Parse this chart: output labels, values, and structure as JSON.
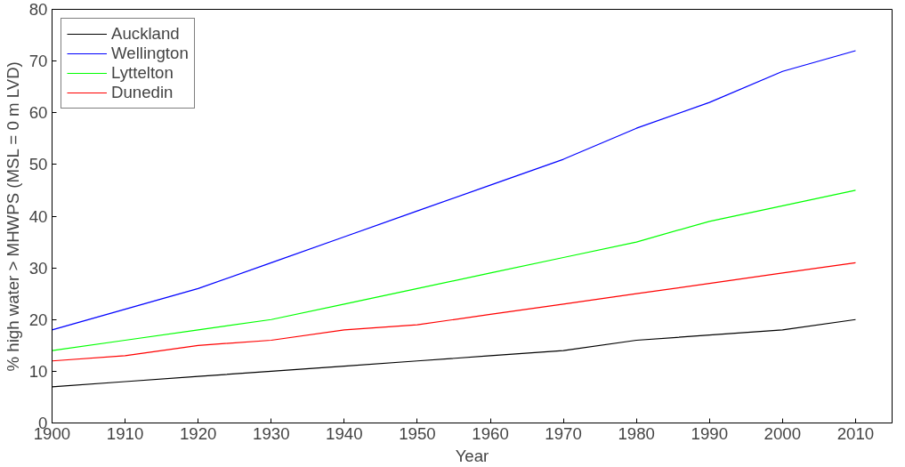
{
  "chart_data": {
    "type": "line",
    "xlabel": "Year",
    "ylabel": "% high water > MHWPS (MSL = 0 m LVD)",
    "x": [
      1900,
      1910,
      1920,
      1930,
      1940,
      1950,
      1960,
      1970,
      1980,
      1990,
      2000,
      2010
    ],
    "series": [
      {
        "name": "Auckland",
        "color": "#000000",
        "values": [
          7,
          8,
          9,
          10,
          11,
          12,
          13,
          14,
          16,
          17,
          18,
          20
        ]
      },
      {
        "name": "Wellington",
        "color": "#0000ff",
        "values": [
          18,
          22,
          26,
          31,
          36,
          41,
          46,
          51,
          57,
          62,
          68,
          72
        ]
      },
      {
        "name": "Lyttelton",
        "color": "#00ff00",
        "values": [
          14,
          16,
          18,
          20,
          23,
          26,
          29,
          32,
          35,
          39,
          42,
          45
        ]
      },
      {
        "name": "Dunedin",
        "color": "#ff0000",
        "values": [
          12,
          13,
          15,
          16,
          18,
          19,
          21,
          23,
          25,
          27,
          29,
          31
        ]
      }
    ],
    "xlim": [
      1900,
      2015
    ],
    "ylim": [
      0,
      80
    ],
    "xticks": [
      1900,
      1910,
      1920,
      1930,
      1940,
      1950,
      1960,
      1970,
      1980,
      1990,
      2000,
      2010
    ],
    "yticks": [
      0,
      10,
      20,
      30,
      40,
      50,
      60,
      70,
      80
    ],
    "grid": false,
    "legend": "top left",
    "line_style": "solid",
    "marker": "none"
  }
}
